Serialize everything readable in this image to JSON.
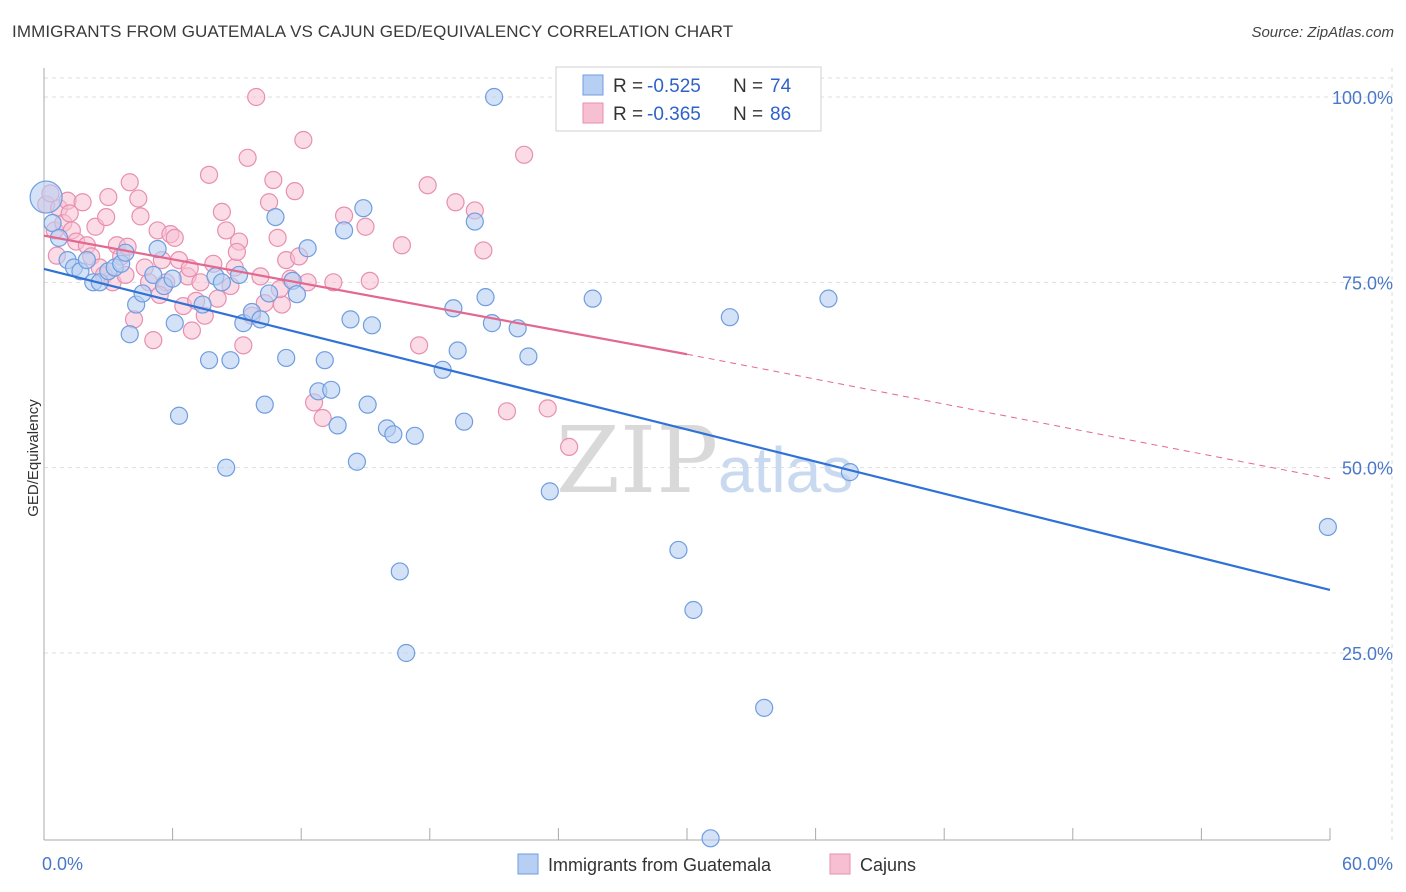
{
  "title": "IMMIGRANTS FROM GUATEMALA VS CAJUN GED/EQUIVALENCY CORRELATION CHART",
  "source": "Source: ZipAtlas.com",
  "watermark": {
    "zip": "ZIP",
    "atlas": "atlas"
  },
  "legend": {
    "rows": [
      {
        "r_label": "R =",
        "r_value": "-0.525",
        "n_label": "N =",
        "n_value": "74"
      },
      {
        "r_label": "R =",
        "r_value": "-0.365",
        "n_label": "N =",
        "n_value": "86"
      }
    ]
  },
  "bottom_legend": [
    "Immigrants from Guatemala",
    "Cajuns"
  ],
  "colors": {
    "blue_fill": "#b7cff2",
    "blue_stroke": "#6f9de0",
    "blue_line": "#2f72d6",
    "pink_fill": "#f7bfd2",
    "pink_stroke": "#e88fb0",
    "pink_line": "#e3688f",
    "grid": "#dddddd",
    "axis_text": "#4a78c8"
  },
  "chart_data": {
    "type": "scatter",
    "title": "IMMIGRANTS FROM GUATEMALA VS CAJUN GED/EQUIVALENCY CORRELATION CHART",
    "xlabel": "",
    "ylabel": "GED/Equivalency",
    "xlim": [
      0,
      60
    ],
    "ylim": [
      0,
      102
    ],
    "x_tick_labels": [
      "0.0%",
      "60.0%"
    ],
    "y_ticks": [
      25,
      50,
      75,
      100
    ],
    "y_tick_labels": [
      "25.0%",
      "50.0%",
      "75.0%",
      "100.0%"
    ],
    "grid": true,
    "legend_position": "top-center",
    "series": [
      {
        "name": "Immigrants from Guatemala",
        "color": "#6f9de0",
        "trend": {
          "x": [
            0,
            60
          ],
          "y": [
            76.8,
            33.5
          ],
          "style": "solid"
        },
        "points": [
          [
            0.1,
            86.5
          ],
          [
            0.4,
            83
          ],
          [
            0.7,
            81
          ],
          [
            1.1,
            78
          ],
          [
            1.4,
            77
          ],
          [
            1.7,
            76.5
          ],
          [
            2.0,
            78
          ],
          [
            2.3,
            75
          ],
          [
            2.6,
            75
          ],
          [
            3.0,
            76.5
          ],
          [
            3.3,
            77
          ],
          [
            3.6,
            77.5
          ],
          [
            3.8,
            79
          ],
          [
            4.0,
            68
          ],
          [
            4.3,
            72
          ],
          [
            4.6,
            73.5
          ],
          [
            5.1,
            76
          ],
          [
            5.6,
            74.5
          ],
          [
            5.3,
            79.5
          ],
          [
            6.0,
            75.5
          ],
          [
            6.1,
            69.5
          ],
          [
            6.3,
            57
          ],
          [
            7.4,
            72
          ],
          [
            7.7,
            64.5
          ],
          [
            8.0,
            75.8
          ],
          [
            8.3,
            75
          ],
          [
            8.5,
            50
          ],
          [
            8.7,
            64.5
          ],
          [
            9.1,
            76
          ],
          [
            9.3,
            69.5
          ],
          [
            9.7,
            71
          ],
          [
            10.1,
            70
          ],
          [
            10.3,
            58.5
          ],
          [
            10.5,
            73.5
          ],
          [
            10.8,
            83.8
          ],
          [
            11.3,
            64.8
          ],
          [
            11.6,
            75.2
          ],
          [
            11.8,
            73.4
          ],
          [
            12.3,
            79.6
          ],
          [
            12.8,
            60.3
          ],
          [
            13.1,
            64.5
          ],
          [
            13.4,
            60.5
          ],
          [
            13.7,
            55.7
          ],
          [
            14.0,
            82
          ],
          [
            14.3,
            70
          ],
          [
            14.6,
            50.8
          ],
          [
            14.9,
            85
          ],
          [
            15.1,
            58.5
          ],
          [
            15.3,
            69.2
          ],
          [
            16.0,
            55.3
          ],
          [
            16.3,
            54.5
          ],
          [
            16.6,
            36
          ],
          [
            16.9,
            25
          ],
          [
            17.3,
            54.3
          ],
          [
            18.6,
            63.2
          ],
          [
            19.1,
            71.5
          ],
          [
            19.3,
            65.8
          ],
          [
            19.6,
            56.2
          ],
          [
            20.1,
            83.2
          ],
          [
            20.6,
            73
          ],
          [
            20.9,
            69.5
          ],
          [
            21.0,
            100
          ],
          [
            22.1,
            68.8
          ],
          [
            22.6,
            65
          ],
          [
            23.6,
            46.8
          ],
          [
            25.6,
            72.8
          ],
          [
            29.6,
            38.9
          ],
          [
            30.3,
            30.8
          ],
          [
            31.1,
            0
          ],
          [
            32.0,
            70.3
          ],
          [
            33.6,
            17.6
          ],
          [
            36.6,
            72.8
          ],
          [
            37.6,
            49.4
          ],
          [
            59.9,
            42
          ]
        ]
      },
      {
        "name": "Cajuns",
        "color": "#e88fb0",
        "trend": {
          "x": [
            0,
            30
          ],
          "y": [
            81.3,
            65.3
          ],
          "style": "solid",
          "extended": {
            "x": [
              30,
              60
            ],
            "y": [
              65.3,
              48.5
            ],
            "style": "dashed"
          }
        },
        "points": [
          [
            0.1,
            85.5
          ],
          [
            0.3,
            87
          ],
          [
            0.5,
            82
          ],
          [
            0.7,
            85
          ],
          [
            0.9,
            83
          ],
          [
            1.1,
            86
          ],
          [
            1.3,
            82
          ],
          [
            1.5,
            80.5
          ],
          [
            1.8,
            85.8
          ],
          [
            2.0,
            80
          ],
          [
            2.2,
            78.5
          ],
          [
            2.4,
            82.5
          ],
          [
            2.6,
            77
          ],
          [
            2.8,
            76
          ],
          [
            3.0,
            86.5
          ],
          [
            3.2,
            75
          ],
          [
            3.4,
            80
          ],
          [
            3.6,
            78.5
          ],
          [
            3.8,
            76
          ],
          [
            4.0,
            88.5
          ],
          [
            4.2,
            70
          ],
          [
            4.4,
            86.3
          ],
          [
            4.5,
            83.9
          ],
          [
            4.7,
            77
          ],
          [
            4.9,
            75
          ],
          [
            5.1,
            67.2
          ],
          [
            5.3,
            82
          ],
          [
            5.5,
            78
          ],
          [
            5.7,
            75
          ],
          [
            5.9,
            81.5
          ],
          [
            6.1,
            81
          ],
          [
            6.3,
            78
          ],
          [
            6.5,
            71.8
          ],
          [
            6.7,
            75.8
          ],
          [
            6.9,
            68.5
          ],
          [
            7.1,
            72.5
          ],
          [
            7.3,
            75
          ],
          [
            7.5,
            70.5
          ],
          [
            7.7,
            89.5
          ],
          [
            7.9,
            77.5
          ],
          [
            8.1,
            72.8
          ],
          [
            8.3,
            84.5
          ],
          [
            8.5,
            82
          ],
          [
            8.7,
            74.5
          ],
          [
            8.9,
            77
          ],
          [
            9.1,
            80.5
          ],
          [
            9.3,
            66.5
          ],
          [
            9.5,
            91.8
          ],
          [
            9.7,
            70.5
          ],
          [
            9.9,
            100
          ],
          [
            10.1,
            75.8
          ],
          [
            10.3,
            72.2
          ],
          [
            10.5,
            85.8
          ],
          [
            10.7,
            88.8
          ],
          [
            10.9,
            81
          ],
          [
            11.1,
            72
          ],
          [
            11.3,
            78
          ],
          [
            11.5,
            75.5
          ],
          [
            11.7,
            87.3
          ],
          [
            11.9,
            78.5
          ],
          [
            12.1,
            94.2
          ],
          [
            12.3,
            75
          ],
          [
            12.6,
            58.8
          ],
          [
            13.0,
            56.7
          ],
          [
            13.5,
            75
          ],
          [
            14.0,
            84
          ],
          [
            15.0,
            82.5
          ],
          [
            15.2,
            75.2
          ],
          [
            16.7,
            80
          ],
          [
            17.5,
            66.5
          ],
          [
            17.9,
            88.1
          ],
          [
            19.2,
            85.8
          ],
          [
            20.1,
            84.7
          ],
          [
            20.5,
            79.3
          ],
          [
            21.6,
            57.6
          ],
          [
            22.4,
            92.2
          ],
          [
            23.5,
            58
          ],
          [
            24.5,
            52.8
          ],
          [
            0.6,
            78.6
          ],
          [
            1.2,
            84.3
          ],
          [
            2.9,
            83.8
          ],
          [
            3.9,
            79.8
          ],
          [
            5.4,
            73.3
          ],
          [
            6.8,
            76.9
          ],
          [
            9.0,
            79.1
          ],
          [
            11.0,
            74.1
          ]
        ]
      }
    ]
  }
}
